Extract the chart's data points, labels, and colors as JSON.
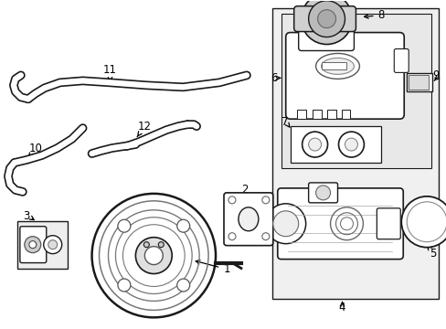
{
  "bg_color": "#ffffff",
  "lc": "#1a1a1a",
  "gray_line": "#888888",
  "box_fill": "#f0f0f0",
  "inner_fill": "#e8e8e8",
  "figsize": [
    4.89,
    3.6
  ],
  "dpi": 100
}
